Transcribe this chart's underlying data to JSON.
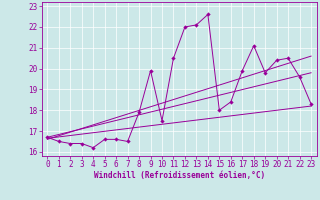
{
  "xlabel": "Windchill (Refroidissement éolien,°C)",
  "bg_color": "#cce8e8",
  "line_color": "#990099",
  "xlim": [
    -0.5,
    23.5
  ],
  "ylim": [
    15.8,
    23.2
  ],
  "yticks": [
    16,
    17,
    18,
    19,
    20,
    21,
    22,
    23
  ],
  "xticks": [
    0,
    1,
    2,
    3,
    4,
    5,
    6,
    7,
    8,
    9,
    10,
    11,
    12,
    13,
    14,
    15,
    16,
    17,
    18,
    19,
    20,
    21,
    22,
    23
  ],
  "series": [
    [
      0,
      16.7
    ],
    [
      1,
      16.5
    ],
    [
      2,
      16.4
    ],
    [
      3,
      16.4
    ],
    [
      4,
      16.2
    ],
    [
      5,
      16.6
    ],
    [
      6,
      16.6
    ],
    [
      7,
      16.5
    ],
    [
      8,
      17.9
    ],
    [
      9,
      19.9
    ],
    [
      10,
      17.5
    ],
    [
      11,
      20.5
    ],
    [
      12,
      22.0
    ],
    [
      13,
      22.1
    ],
    [
      14,
      22.6
    ],
    [
      15,
      18.0
    ],
    [
      16,
      18.4
    ],
    [
      17,
      19.9
    ],
    [
      18,
      21.1
    ],
    [
      19,
      19.8
    ],
    [
      20,
      20.4
    ],
    [
      21,
      20.5
    ],
    [
      22,
      19.6
    ],
    [
      23,
      18.3
    ]
  ],
  "regression_lines": [
    {
      "x": [
        0,
        23
      ],
      "y": [
        16.65,
        18.2
      ]
    },
    {
      "x": [
        0,
        23
      ],
      "y": [
        16.7,
        19.8
      ]
    },
    {
      "x": [
        0,
        23
      ],
      "y": [
        16.6,
        20.6
      ]
    }
  ],
  "xlabel_fontsize": 5.5,
  "tick_fontsize": 5.5
}
